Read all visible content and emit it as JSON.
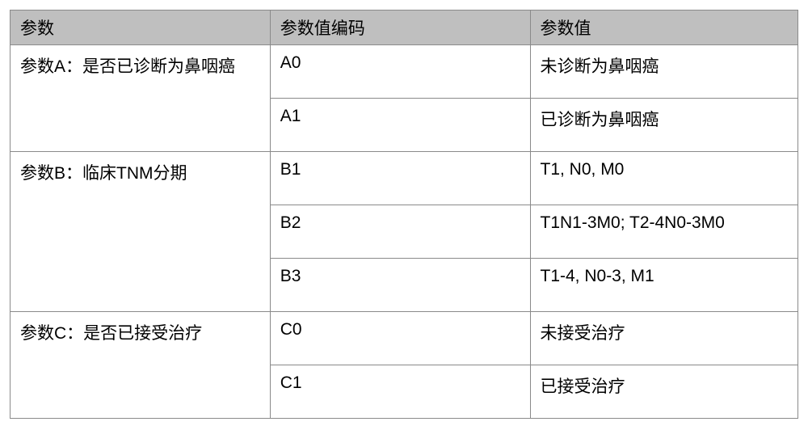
{
  "table": {
    "columns": [
      "参数",
      "参数值编码",
      "参数值"
    ],
    "header_bg": "#bfbfbf",
    "border_color": "#8a8a8a",
    "font_size_pt": 16,
    "groups": [
      {
        "param": "参数A：是否已诊断为鼻咽癌",
        "rows": [
          {
            "code": "A0",
            "value": "未诊断为鼻咽癌"
          },
          {
            "code": "A1",
            "value": "已诊断为鼻咽癌"
          }
        ]
      },
      {
        "param": "参数B：临床TNM分期",
        "rows": [
          {
            "code": "B1",
            "value": "T1, N0, M0"
          },
          {
            "code": "B2",
            "value": "T1N1-3M0; T2-4N0-3M0"
          },
          {
            "code": "B3",
            "value": "T1-4, N0-3, M1"
          }
        ]
      },
      {
        "param": "参数C：是否已接受治疗",
        "rows": [
          {
            "code": "C0",
            "value": "未接受治疗"
          },
          {
            "code": "C1",
            "value": "已接受治疗"
          }
        ]
      }
    ]
  }
}
